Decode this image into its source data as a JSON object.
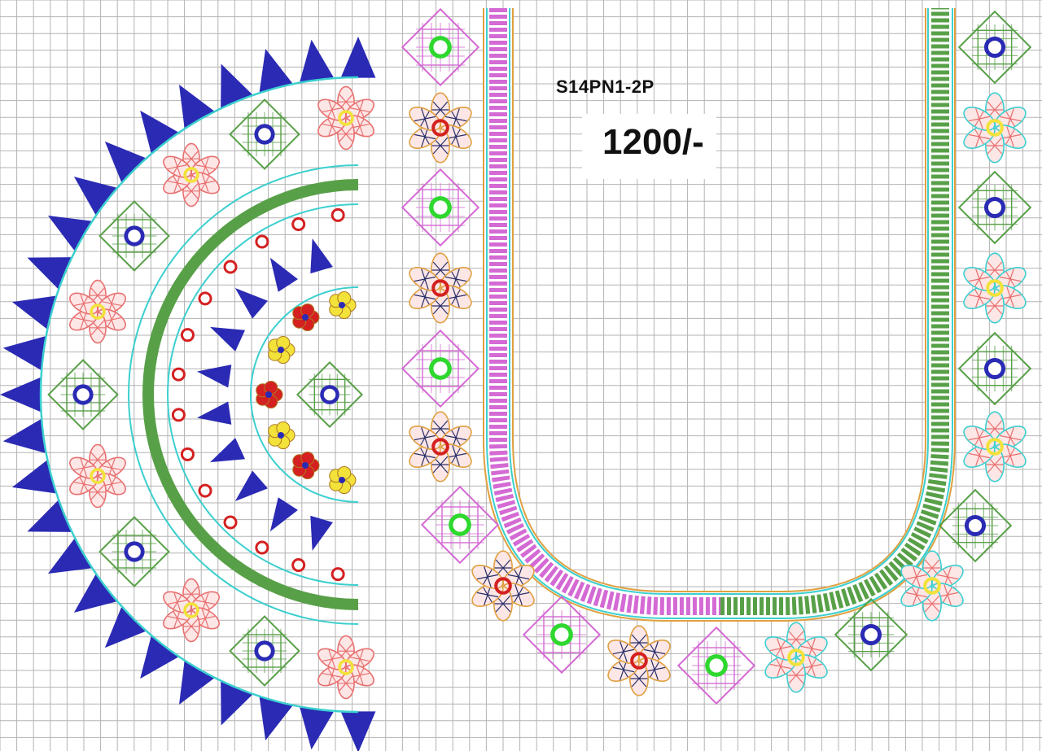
{
  "design": {
    "code": "S14PN1-2P",
    "price": "1200/-"
  },
  "palette": {
    "grid": "#9a9a9a",
    "teal": "#3ccfcf",
    "royal_blue": "#2a2ab4",
    "leaf_green": "#58a048",
    "magenta": "#d46ad4",
    "salmon": "#e87070",
    "gold": "#e0a040",
    "navy": "#28306a",
    "yellow": "#f2e23a",
    "red": "#d42020",
    "bright_green": "#2ed82e"
  }
}
